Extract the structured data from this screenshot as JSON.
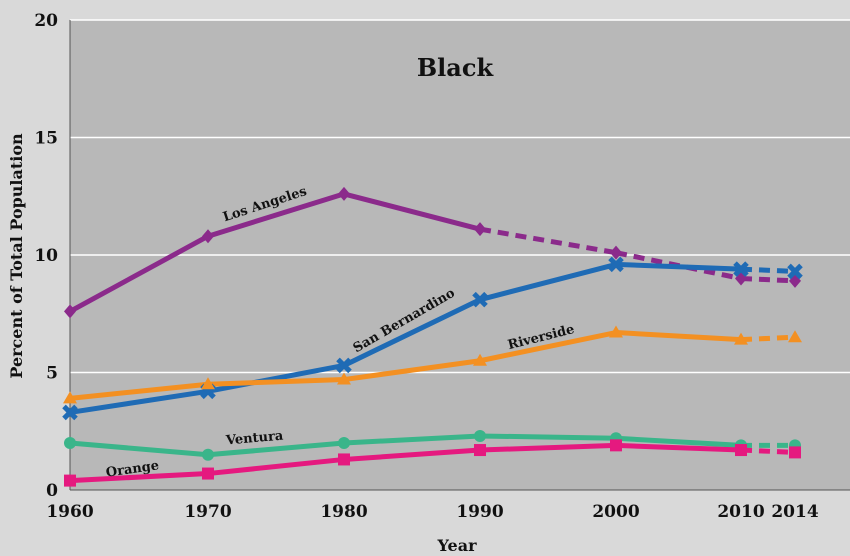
{
  "chart_data": {
    "type": "line",
    "title": "Black",
    "xlabel": "Year",
    "ylabel": "Percent of Total Population",
    "x": [
      1960,
      1970,
      1980,
      1990,
      2000,
      2010,
      2014
    ],
    "x_tick_labels": [
      "1960",
      "1970",
      "1980",
      "1990",
      "2000",
      "2010",
      "2014"
    ],
    "y_ticks": [
      0,
      5,
      10,
      15,
      20
    ],
    "y_tick_labels": [
      "0",
      "5",
      "10",
      "15",
      "20"
    ],
    "ylim": [
      0,
      20
    ],
    "grid": true,
    "dashed_from": 1990,
    "series": [
      {
        "name": "Los Angeles",
        "color": "#8b2a8b",
        "marker": "diamond",
        "dashed_from": 1990,
        "values": [
          7.6,
          10.8,
          12.6,
          11.1,
          10.1,
          9.0,
          8.9
        ]
      },
      {
        "name": "San Bernardino",
        "color": "#1f6bb5",
        "marker": "x",
        "dashed_from": 2010,
        "values": [
          3.3,
          4.2,
          5.3,
          8.1,
          9.6,
          9.4,
          9.3
        ]
      },
      {
        "name": "Riverside",
        "color": "#f39022",
        "marker": "triangle",
        "dashed_from": 2010,
        "values": [
          3.9,
          4.5,
          4.7,
          5.5,
          6.7,
          6.4,
          6.5
        ]
      },
      {
        "name": "Ventura",
        "color": "#3ab58a",
        "marker": "circle",
        "dashed_from": 2010,
        "values": [
          2.0,
          1.5,
          2.0,
          2.3,
          2.2,
          1.9,
          1.9
        ]
      },
      {
        "name": "Orange",
        "color": "#e5197f",
        "marker": "square",
        "dashed_from": 2010,
        "values": [
          0.4,
          0.7,
          1.3,
          1.7,
          1.9,
          1.7,
          1.6
        ]
      }
    ]
  }
}
